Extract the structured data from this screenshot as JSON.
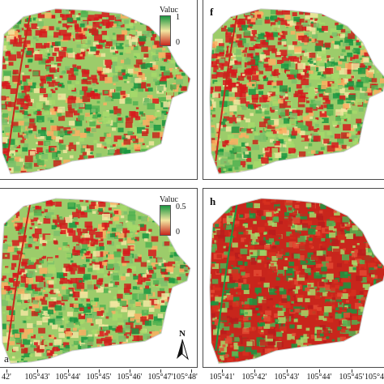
{
  "panels": [
    {
      "id": "e",
      "letter": "",
      "legend": {
        "title": "Valuc",
        "max": "1",
        "min": "0"
      },
      "tone": "mixed"
    },
    {
      "id": "f",
      "letter": "f",
      "legend": null,
      "tone": "mixed"
    },
    {
      "id": "g",
      "letter": "a",
      "legend": {
        "title": "Valuc",
        "max": "0.5",
        "min": "0"
      },
      "tone": "mixed"
    },
    {
      "id": "h",
      "letter": "h",
      "legend": null,
      "tone": "red"
    }
  ],
  "north_arrow": {
    "label": "N"
  },
  "axis_left": {
    "labels": [
      "42'",
      "105°43'",
      "105°44'",
      "105°45'",
      "105°46'",
      "105°47'",
      "105°48'"
    ]
  },
  "axis_right": {
    "labels": [
      "105°41'",
      "105°42'",
      "105°43'",
      "105°44'",
      "105°45'",
      "105°4"
    ]
  },
  "colors": {
    "high": "#1a9641",
    "mid": "#f2e6a0",
    "low": "#c8261c",
    "outline": "#cfcfcf"
  }
}
